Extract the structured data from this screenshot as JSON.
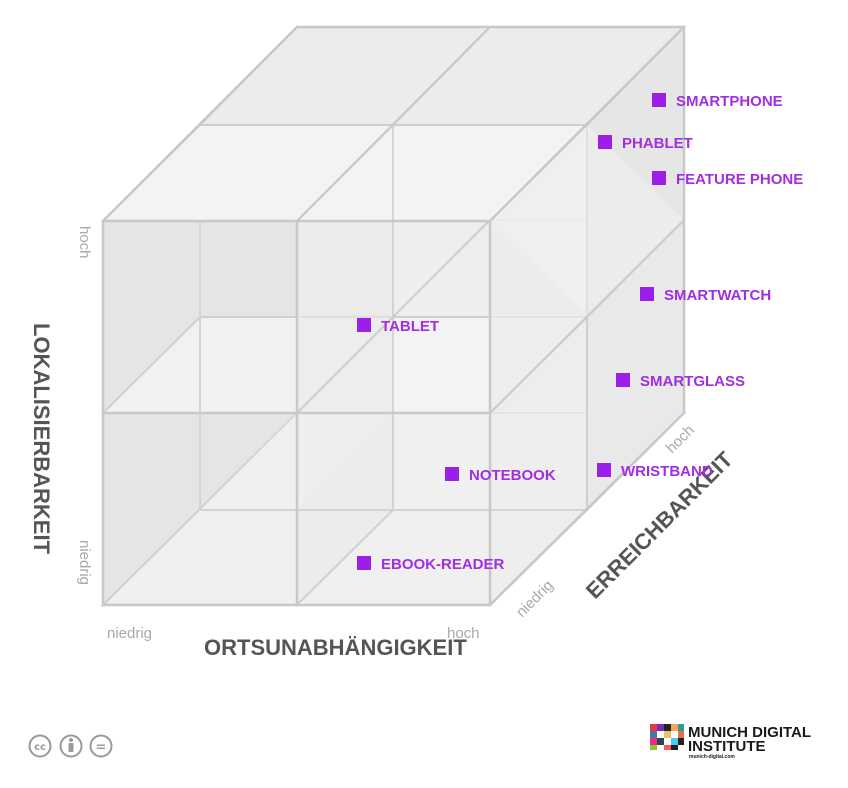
{
  "axes": {
    "vertical": {
      "title": "LOKALISIERBARKEIT",
      "low": "niedrig",
      "high": "hoch"
    },
    "horizontal": {
      "title": "ORTSUNABHÄNGIGKEIT",
      "low": "niedrig",
      "high": "hoch"
    },
    "depth": {
      "title": "ERREICHBARKEIT",
      "low": "niedrig",
      "high": "hoch"
    }
  },
  "devices": [
    {
      "label": "SMARTPHONE"
    },
    {
      "label": "PHABLET"
    },
    {
      "label": "FEATURE PHONE"
    },
    {
      "label": "SMARTWATCH"
    },
    {
      "label": "TABLET"
    },
    {
      "label": "SMARTGLASS"
    },
    {
      "label": "WRISTBAND"
    },
    {
      "label": "NOTEBOOK"
    },
    {
      "label": "EBOOK-READER"
    }
  ],
  "colors": {
    "marker": "#9b1fe8",
    "label": "#a22ee0",
    "cube_face": "#f2f2f2",
    "cube_side": "#e6e6e6",
    "cube_edge": "#c8c8c8"
  },
  "footer": {
    "license_icons": [
      "cc-icon",
      "by-icon",
      "nd-icon"
    ],
    "license_text": {
      "cc": "cc",
      "nd": "="
    },
    "logo": {
      "line1": "MUNICH DIGITAL",
      "line2": "INSTITUTE",
      "url": "munich-digital.com"
    }
  }
}
